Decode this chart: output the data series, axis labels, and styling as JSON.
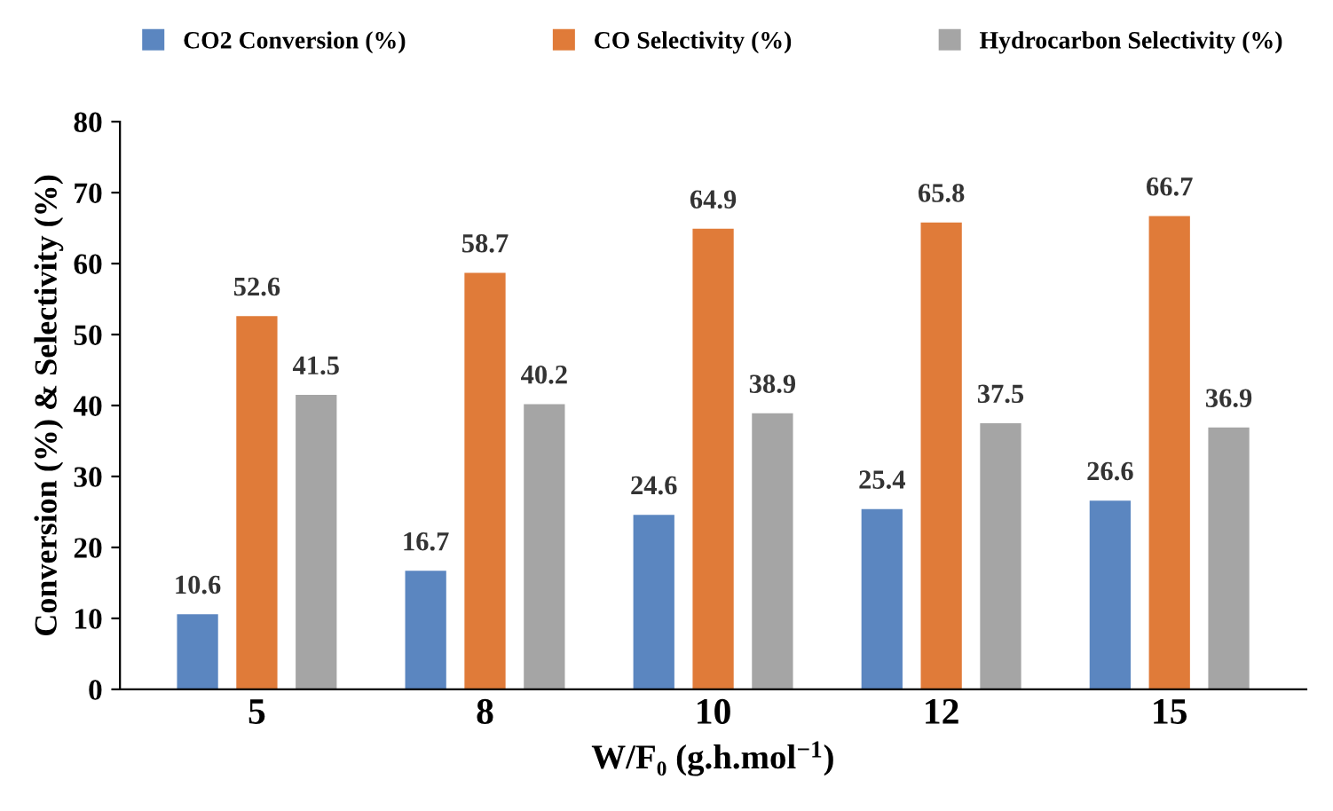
{
  "chart_data": {
    "type": "bar",
    "xlabel": "W/F₀ (g.h.mol$^{−1}$)",
    "ylabel": "Conversion (%) & Selectivity (%)",
    "categories": [
      "5",
      "8",
      "10",
      "12",
      "15"
    ],
    "series": [
      {
        "name": "CO2 Conversion (%)",
        "color": "#5b86c0",
        "values": [
          10.6,
          16.7,
          24.6,
          25.4,
          26.6
        ]
      },
      {
        "name": "CO Selectivity (%)",
        "color": "#e07b39",
        "values": [
          52.6,
          58.7,
          64.9,
          65.8,
          66.7
        ]
      },
      {
        "name": "Hydrocarbon Selectivity (%)",
        "color": "#a5a5a5",
        "values": [
          41.5,
          40.2,
          38.9,
          37.5,
          36.9
        ]
      }
    ],
    "ylim": [
      0,
      80
    ],
    "yticks": [
      0,
      10,
      20,
      30,
      40,
      50,
      60,
      70,
      80
    ],
    "data_labels": true,
    "legend": "top",
    "grid": false
  }
}
